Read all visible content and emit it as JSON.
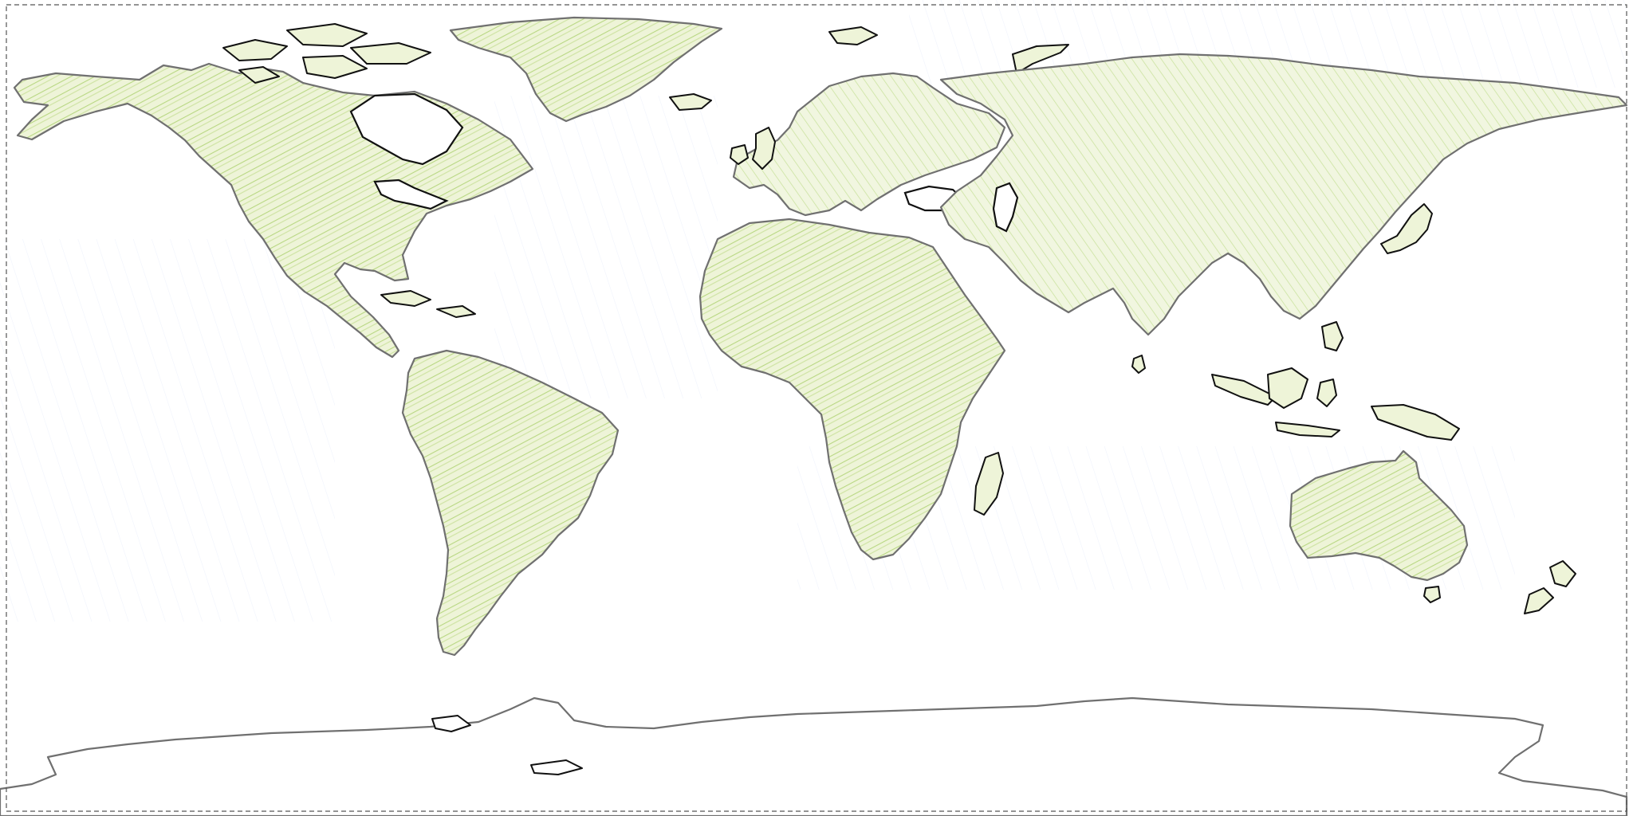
{
  "map": {
    "projection": "equirectangular",
    "style": "hand-drawn colored-pencil world map",
    "colors": {
      "background": "#ffffff",
      "land_fill": "#eef4d8",
      "land_hatch": "#8cbf3c",
      "ocean_hatch": "#b8c8f0",
      "coastline": "#707070",
      "island_outline": "#111111",
      "frame": "#555555"
    },
    "features": [
      "north-america",
      "greenland",
      "south-america",
      "europe",
      "africa",
      "asia",
      "australia",
      "antarctica",
      "madagascar",
      "new-zealand",
      "japan",
      "british-isles",
      "iceland",
      "indonesia",
      "new-guinea",
      "caspian-sea",
      "black-sea",
      "hudson-bay",
      "great-lakes"
    ]
  }
}
